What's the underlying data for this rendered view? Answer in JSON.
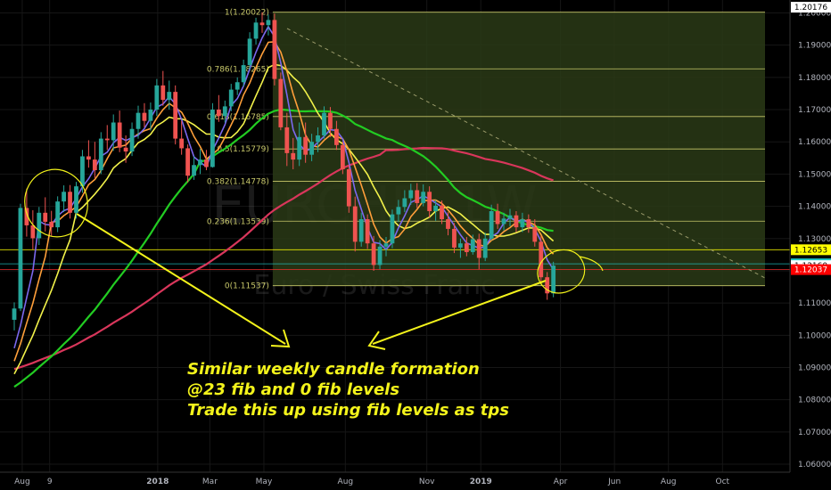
{
  "chart_data": {
    "type": "candlestick",
    "title": "EURCHF, 1W",
    "subtitle": "Euro / Swiss Franc",
    "x_ticks": [
      "Aug",
      "9",
      "2018",
      "Mar",
      "May",
      "Aug",
      "Nov",
      "2019",
      "Apr",
      "Jun",
      "Aug",
      "Oct"
    ],
    "y_ticks": [
      "1.20000",
      "1.19000",
      "1.18000",
      "1.17000",
      "1.16000",
      "1.15000",
      "1.14000",
      "1.13000",
      "1.12000",
      "1.11000",
      "1.10000",
      "1.09000",
      "1.08000",
      "1.07000",
      "1.06000"
    ],
    "ylim": [
      1.052,
      1.204
    ],
    "fib_levels": [
      {
        "label": "1(1.20022)",
        "value": 1.20022
      },
      {
        "label": "0.786(1.18265)",
        "value": 1.18265
      },
      {
        "label": "0.618(1.16785)",
        "value": 1.16785
      },
      {
        "label": "0.5(1.15779)",
        "value": 1.15779
      },
      {
        "label": "0.382(1.14778)",
        "value": 1.14778
      },
      {
        "label": "0.236(1.13539)",
        "value": 1.13539
      },
      {
        "label": "0(1.11537)",
        "value": 1.11537
      }
    ],
    "price_tags": [
      {
        "label": "1.20176",
        "value": 1.20176,
        "bg": "#ffffff",
        "fg": "#000000"
      },
      {
        "label": "1.12653",
        "value": 1.12653,
        "bg": "#ffff00",
        "fg": "#000000"
      },
      {
        "label": "1.12216",
        "value": 1.12216,
        "bg": "#20c5c5",
        "fg": "#000000"
      },
      {
        "label": "1.12160",
        "value": 1.1216,
        "bg": "#ffffff",
        "fg": "#000000"
      },
      {
        "label": "1.12037",
        "value": 1.12037,
        "bg": "#ff0000",
        "fg": "#ffffff"
      }
    ],
    "candles": [
      {
        "date": "2017-07-23",
        "o": 1.1048,
        "h": 1.1102,
        "l": 1.1015,
        "c": 1.1083
      },
      {
        "date": "2017-07-30",
        "o": 1.1083,
        "h": 1.1408,
        "l": 1.1075,
        "c": 1.1395
      },
      {
        "date": "2017-08-06",
        "o": 1.1395,
        "h": 1.1455,
        "l": 1.1306,
        "c": 1.1341
      },
      {
        "date": "2017-08-13",
        "o": 1.1341,
        "h": 1.1388,
        "l": 1.1266,
        "c": 1.1301
      },
      {
        "date": "2017-08-20",
        "o": 1.1301,
        "h": 1.1398,
        "l": 1.128,
        "c": 1.138
      },
      {
        "date": "2017-08-27",
        "o": 1.138,
        "h": 1.1428,
        "l": 1.1322,
        "c": 1.1352
      },
      {
        "date": "2017-09-03",
        "o": 1.1352,
        "h": 1.1386,
        "l": 1.1309,
        "c": 1.1335
      },
      {
        "date": "2017-09-10",
        "o": 1.1335,
        "h": 1.1431,
        "l": 1.132,
        "c": 1.1415
      },
      {
        "date": "2017-09-17",
        "o": 1.1415,
        "h": 1.1465,
        "l": 1.1382,
        "c": 1.1445
      },
      {
        "date": "2017-09-24",
        "o": 1.1445,
        "h": 1.1466,
        "l": 1.1362,
        "c": 1.138
      },
      {
        "date": "2017-10-01",
        "o": 1.138,
        "h": 1.1476,
        "l": 1.1362,
        "c": 1.1462
      },
      {
        "date": "2017-10-08",
        "o": 1.1462,
        "h": 1.1575,
        "l": 1.1442,
        "c": 1.1555
      },
      {
        "date": "2017-10-15",
        "o": 1.1555,
        "h": 1.1605,
        "l": 1.152,
        "c": 1.1545
      },
      {
        "date": "2017-10-22",
        "o": 1.1545,
        "h": 1.16,
        "l": 1.1488,
        "c": 1.1512
      },
      {
        "date": "2017-10-29",
        "o": 1.1512,
        "h": 1.163,
        "l": 1.15,
        "c": 1.161
      },
      {
        "date": "2017-11-05",
        "o": 1.161,
        "h": 1.1652,
        "l": 1.1575,
        "c": 1.1605
      },
      {
        "date": "2017-11-12",
        "o": 1.1605,
        "h": 1.1685,
        "l": 1.1572,
        "c": 1.166
      },
      {
        "date": "2017-11-19",
        "o": 1.166,
        "h": 1.1697,
        "l": 1.1568,
        "c": 1.1582
      },
      {
        "date": "2017-11-26",
        "o": 1.1582,
        "h": 1.162,
        "l": 1.1535,
        "c": 1.157
      },
      {
        "date": "2017-12-03",
        "o": 1.157,
        "h": 1.166,
        "l": 1.1556,
        "c": 1.164
      },
      {
        "date": "2017-12-10",
        "o": 1.164,
        "h": 1.1712,
        "l": 1.161,
        "c": 1.169
      },
      {
        "date": "2017-12-17",
        "o": 1.169,
        "h": 1.172,
        "l": 1.1645,
        "c": 1.1665
      },
      {
        "date": "2017-12-24",
        "o": 1.1665,
        "h": 1.1722,
        "l": 1.1635,
        "c": 1.17
      },
      {
        "date": "2017-12-31",
        "o": 1.17,
        "h": 1.1795,
        "l": 1.168,
        "c": 1.1775
      },
      {
        "date": "2018-01-07",
        "o": 1.1775,
        "h": 1.182,
        "l": 1.1712,
        "c": 1.173
      },
      {
        "date": "2018-01-14",
        "o": 1.173,
        "h": 1.179,
        "l": 1.17,
        "c": 1.1755
      },
      {
        "date": "2018-01-21",
        "o": 1.1755,
        "h": 1.1775,
        "l": 1.1592,
        "c": 1.161
      },
      {
        "date": "2018-01-28",
        "o": 1.161,
        "h": 1.1665,
        "l": 1.156,
        "c": 1.158
      },
      {
        "date": "2018-02-04",
        "o": 1.158,
        "h": 1.1592,
        "l": 1.1474,
        "c": 1.1495
      },
      {
        "date": "2018-02-11",
        "o": 1.1495,
        "h": 1.1555,
        "l": 1.1482,
        "c": 1.1528
      },
      {
        "date": "2018-02-18",
        "o": 1.1528,
        "h": 1.1578,
        "l": 1.15,
        "c": 1.1545
      },
      {
        "date": "2018-02-25",
        "o": 1.1545,
        "h": 1.1575,
        "l": 1.1512,
        "c": 1.1522
      },
      {
        "date": "2018-03-04",
        "o": 1.1522,
        "h": 1.172,
        "l": 1.152,
        "c": 1.17
      },
      {
        "date": "2018-03-11",
        "o": 1.17,
        "h": 1.1745,
        "l": 1.1662,
        "c": 1.168
      },
      {
        "date": "2018-03-18",
        "o": 1.168,
        "h": 1.1728,
        "l": 1.166,
        "c": 1.171
      },
      {
        "date": "2018-03-25",
        "o": 1.171,
        "h": 1.178,
        "l": 1.1695,
        "c": 1.1762
      },
      {
        "date": "2018-04-01",
        "o": 1.1762,
        "h": 1.18,
        "l": 1.1745,
        "c": 1.1785
      },
      {
        "date": "2018-04-08",
        "o": 1.1785,
        "h": 1.1855,
        "l": 1.1772,
        "c": 1.1838
      },
      {
        "date": "2018-04-15",
        "o": 1.1838,
        "h": 1.194,
        "l": 1.1825,
        "c": 1.192
      },
      {
        "date": "2018-04-22",
        "o": 1.192,
        "h": 1.1985,
        "l": 1.1902,
        "c": 1.197
      },
      {
        "date": "2018-04-29",
        "o": 1.197,
        "h": 1.2002,
        "l": 1.1938,
        "c": 1.1962
      },
      {
        "date": "2018-05-06",
        "o": 1.1962,
        "h": 1.1995,
        "l": 1.193,
        "c": 1.1978
      },
      {
        "date": "2018-05-13",
        "o": 1.1978,
        "h": 1.1998,
        "l": 1.1775,
        "c": 1.1795
      },
      {
        "date": "2018-05-20",
        "o": 1.1795,
        "h": 1.1815,
        "l": 1.1636,
        "c": 1.1645
      },
      {
        "date": "2018-05-27",
        "o": 1.1645,
        "h": 1.169,
        "l": 1.1525,
        "c": 1.1565
      },
      {
        "date": "2018-06-03",
        "o": 1.1565,
        "h": 1.1612,
        "l": 1.1515,
        "c": 1.1545
      },
      {
        "date": "2018-06-10",
        "o": 1.1545,
        "h": 1.166,
        "l": 1.1525,
        "c": 1.1615
      },
      {
        "date": "2018-06-17",
        "o": 1.1615,
        "h": 1.166,
        "l": 1.1535,
        "c": 1.156
      },
      {
        "date": "2018-06-24",
        "o": 1.156,
        "h": 1.1625,
        "l": 1.154,
        "c": 1.16
      },
      {
        "date": "2018-07-01",
        "o": 1.16,
        "h": 1.1645,
        "l": 1.1568,
        "c": 1.162
      },
      {
        "date": "2018-07-08",
        "o": 1.162,
        "h": 1.171,
        "l": 1.161,
        "c": 1.169
      },
      {
        "date": "2018-07-15",
        "o": 1.169,
        "h": 1.1708,
        "l": 1.1615,
        "c": 1.164
      },
      {
        "date": "2018-07-22",
        "o": 1.164,
        "h": 1.1665,
        "l": 1.1575,
        "c": 1.159
      },
      {
        "date": "2018-07-29",
        "o": 1.159,
        "h": 1.16,
        "l": 1.15,
        "c": 1.1515
      },
      {
        "date": "2018-08-05",
        "o": 1.1515,
        "h": 1.1528,
        "l": 1.138,
        "c": 1.14
      },
      {
        "date": "2018-08-12",
        "o": 1.14,
        "h": 1.143,
        "l": 1.126,
        "c": 1.129
      },
      {
        "date": "2018-08-19",
        "o": 1.129,
        "h": 1.138,
        "l": 1.1275,
        "c": 1.136
      },
      {
        "date": "2018-08-26",
        "o": 1.136,
        "h": 1.1375,
        "l": 1.1268,
        "c": 1.1285
      },
      {
        "date": "2018-09-02",
        "o": 1.1285,
        "h": 1.1308,
        "l": 1.12,
        "c": 1.1218
      },
      {
        "date": "2018-09-09",
        "o": 1.1218,
        "h": 1.1295,
        "l": 1.1205,
        "c": 1.1275
      },
      {
        "date": "2018-09-16",
        "o": 1.1275,
        "h": 1.1305,
        "l": 1.1245,
        "c": 1.1285
      },
      {
        "date": "2018-09-23",
        "o": 1.1285,
        "h": 1.139,
        "l": 1.127,
        "c": 1.1375
      },
      {
        "date": "2018-09-30",
        "o": 1.1375,
        "h": 1.142,
        "l": 1.1352,
        "c": 1.1398
      },
      {
        "date": "2018-10-07",
        "o": 1.1398,
        "h": 1.145,
        "l": 1.1382,
        "c": 1.1425
      },
      {
        "date": "2018-10-14",
        "o": 1.1425,
        "h": 1.147,
        "l": 1.1405,
        "c": 1.145
      },
      {
        "date": "2018-10-21",
        "o": 1.145,
        "h": 1.1472,
        "l": 1.1395,
        "c": 1.141
      },
      {
        "date": "2018-10-28",
        "o": 1.141,
        "h": 1.1468,
        "l": 1.14,
        "c": 1.1445
      },
      {
        "date": "2018-11-04",
        "o": 1.1445,
        "h": 1.1462,
        "l": 1.1365,
        "c": 1.1385
      },
      {
        "date": "2018-11-11",
        "o": 1.1385,
        "h": 1.142,
        "l": 1.1355,
        "c": 1.1402
      },
      {
        "date": "2018-11-18",
        "o": 1.1402,
        "h": 1.1418,
        "l": 1.1345,
        "c": 1.136
      },
      {
        "date": "2018-11-25",
        "o": 1.136,
        "h": 1.1382,
        "l": 1.131,
        "c": 1.133
      },
      {
        "date": "2018-12-02",
        "o": 1.133,
        "h": 1.1348,
        "l": 1.1255,
        "c": 1.1272
      },
      {
        "date": "2018-12-09",
        "o": 1.1272,
        "h": 1.13,
        "l": 1.124,
        "c": 1.1285
      },
      {
        "date": "2018-12-16",
        "o": 1.1285,
        "h": 1.1305,
        "l": 1.1245,
        "c": 1.1258
      },
      {
        "date": "2018-12-23",
        "o": 1.1258,
        "h": 1.1312,
        "l": 1.125,
        "c": 1.1298
      },
      {
        "date": "2018-12-30",
        "o": 1.1298,
        "h": 1.1315,
        "l": 1.1205,
        "c": 1.124
      },
      {
        "date": "2019-01-06",
        "o": 1.124,
        "h": 1.1318,
        "l": 1.123,
        "c": 1.13
      },
      {
        "date": "2019-01-13",
        "o": 1.13,
        "h": 1.1405,
        "l": 1.1295,
        "c": 1.1385
      },
      {
        "date": "2019-01-20",
        "o": 1.1385,
        "h": 1.1408,
        "l": 1.133,
        "c": 1.1345
      },
      {
        "date": "2019-01-27",
        "o": 1.1345,
        "h": 1.138,
        "l": 1.1325,
        "c": 1.1362
      },
      {
        "date": "2019-02-03",
        "o": 1.1362,
        "h": 1.1392,
        "l": 1.1338,
        "c": 1.1372
      },
      {
        "date": "2019-02-10",
        "o": 1.1372,
        "h": 1.1385,
        "l": 1.132,
        "c": 1.1335
      },
      {
        "date": "2019-02-17",
        "o": 1.1335,
        "h": 1.138,
        "l": 1.132,
        "c": 1.136
      },
      {
        "date": "2019-02-24",
        "o": 1.136,
        "h": 1.1375,
        "l": 1.1318,
        "c": 1.1335
      },
      {
        "date": "2019-03-03",
        "o": 1.1335,
        "h": 1.136,
        "l": 1.1275,
        "c": 1.129
      },
      {
        "date": "2019-03-10",
        "o": 1.129,
        "h": 1.1308,
        "l": 1.116,
        "c": 1.118
      },
      {
        "date": "2019-03-17",
        "o": 1.118,
        "h": 1.1196,
        "l": 1.111,
        "c": 1.113
      },
      {
        "date": "2019-03-24",
        "o": 1.113,
        "h": 1.1228,
        "l": 1.1118,
        "c": 1.1216
      }
    ]
  },
  "annotation": {
    "line1": "Similar weekly candle formation",
    "line2": "@23 fib and 0 fib levels",
    "line3": "Trade this up using fib levels as tps"
  },
  "colors": {
    "background": "#000000",
    "up_candle": "#26a69a",
    "down_candle": "#ef5350",
    "fib_line": "#c8c86a",
    "fib_fill": "#2a3a16",
    "annotation": "#f3f31b",
    "ma_fast": "#7b68ee",
    "ma_mid": "#ff9f3a",
    "ma_slow": "#f2f24a",
    "ma_green": "#22cc22",
    "ma_red": "#d9365b"
  }
}
